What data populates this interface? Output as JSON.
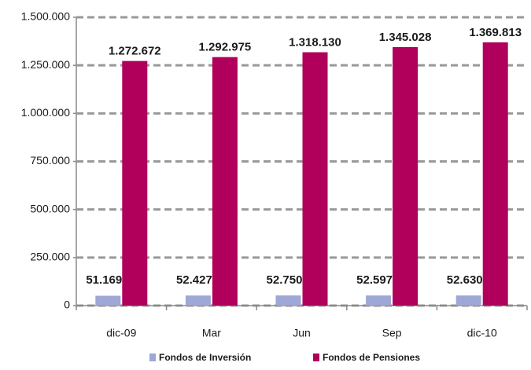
{
  "chart_data": {
    "type": "bar",
    "categories": [
      "dic-09",
      "Mar",
      "Jun",
      "Sep",
      "dic-10"
    ],
    "series": [
      {
        "name": "Fondos de Inversión",
        "color": "#9ea8d6",
        "values": [
          51169,
          52427,
          52750,
          52597,
          52630
        ],
        "value_labels": [
          "51.169",
          "52.427",
          "52.750",
          "52.597",
          "52.630"
        ]
      },
      {
        "name": "Fondos de Pensiones",
        "color": "#b0005b",
        "values": [
          1272672,
          1292975,
          1318130,
          1345028,
          1369813
        ],
        "value_labels": [
          "1.272.672",
          "1.292.975",
          "1.318.130",
          "1.345.028",
          "1.369.813"
        ]
      }
    ],
    "ylim": [
      0,
      1500000
    ],
    "yticks": [
      0,
      {
        "value": 250000,
        "label": "250.000"
      },
      {
        "value": 500000,
        "label": "500.000"
      },
      {
        "value": 750000,
        "label": "750.000"
      },
      {
        "value": 1000000,
        "label": "1.000.000"
      },
      {
        "value": 1250000,
        "label": "1.250.000"
      },
      {
        "value": 1500000,
        "label": "1.500.000"
      }
    ],
    "grid": true,
    "legend": "bottom"
  }
}
